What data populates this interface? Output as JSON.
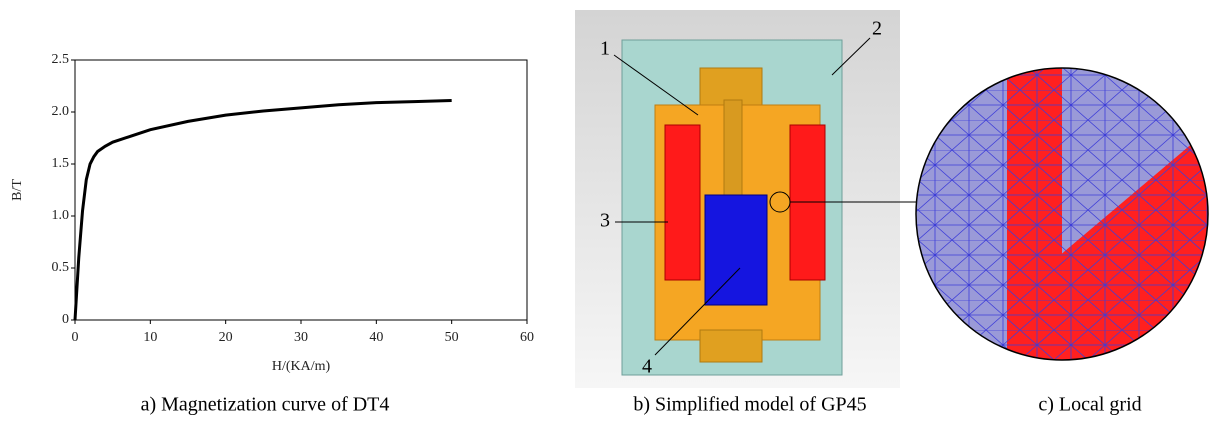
{
  "chart_data": {
    "type": "line",
    "x_label": "H/(KA/m)",
    "y_label": "B/T",
    "caption": "a) Magnetization curve of DT4",
    "xlim": [
      0,
      60
    ],
    "xticks": [
      0,
      10,
      20,
      30,
      40,
      50,
      60
    ],
    "ylim": [
      0,
      2.5
    ],
    "yticks": [
      0,
      0.5,
      {
        "value": 1,
        "label": "1.0"
      },
      1.5,
      {
        "value": 2,
        "label": "2.0"
      },
      2.5
    ],
    "grid": false,
    "series": [
      {
        "color": "#000000",
        "x": [
          0,
          0.5,
          1,
          1.5,
          2,
          2.5,
          3,
          4,
          5,
          7.5,
          10,
          15,
          20,
          25,
          30,
          35,
          40,
          45,
          50
        ],
        "values": [
          0,
          0.6,
          1.05,
          1.35,
          1.5,
          1.57,
          1.62,
          1.67,
          1.71,
          1.77,
          1.83,
          1.91,
          1.97,
          2.01,
          2.04,
          2.07,
          2.09,
          2.1,
          2.11
        ]
      }
    ]
  },
  "model": {
    "caption": "b) Simplified model of GP45",
    "callouts": [
      "1",
      "2",
      "3",
      "4"
    ]
  },
  "grid_view": {
    "caption": "c) Local grid"
  }
}
